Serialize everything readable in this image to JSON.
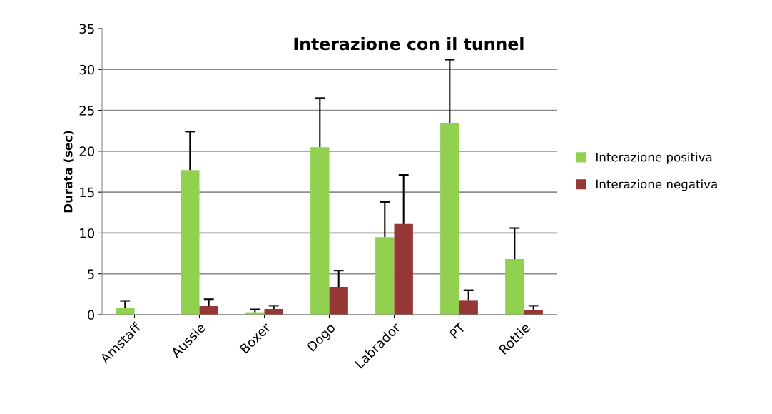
{
  "chart_data": {
    "type": "bar",
    "title": "Interazione con il tunnel",
    "ylabel": "Durata (sec)",
    "categories": [
      "Amstaff",
      "Aussie",
      "Boxer",
      "Dogo",
      "Labrador",
      "PT",
      "Rottie"
    ],
    "series": [
      {
        "name": "Interazione positiva",
        "color": "#92d050",
        "values": [
          0.8,
          17.7,
          0.3,
          20.5,
          9.5,
          23.4,
          6.8
        ],
        "errors": [
          [
            0.8,
            1.7
          ],
          [
            17.7,
            22.4
          ],
          [
            0.3,
            0.65
          ],
          [
            20.5,
            26.5
          ],
          [
            9.5,
            13.8
          ],
          [
            23.4,
            31.2
          ],
          [
            6.8,
            10.6
          ]
        ]
      },
      {
        "name": "Interazione negativa",
        "color": "#953735",
        "values": [
          null,
          1.1,
          0.7,
          3.4,
          11.1,
          1.8,
          0.6
        ],
        "errors": [
          null,
          [
            1.1,
            1.9
          ],
          [
            0.7,
            1.1
          ],
          [
            3.4,
            5.4
          ],
          [
            11.1,
            17.1
          ],
          [
            1.8,
            3.0
          ],
          [
            0.6,
            1.1
          ]
        ]
      }
    ],
    "ylim": [
      0,
      35
    ],
    "yticks": [
      0,
      5,
      10,
      15,
      20,
      25,
      30,
      35
    ],
    "grid": "y",
    "legend": "right"
  }
}
